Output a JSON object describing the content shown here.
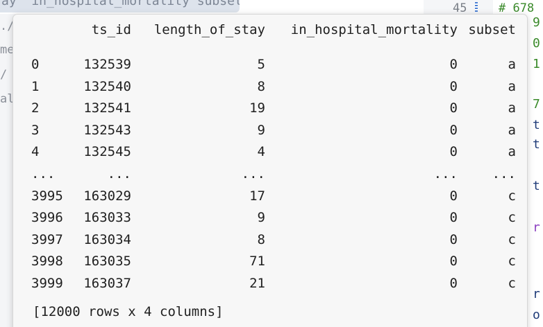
{
  "background": {
    "top_tab_text": "ay  in_hospital_mortality subset",
    "left_fragments": [
      "./",
      "me.",
      "/",
      "al"
    ],
    "right_pane": {
      "line_number": "45",
      "comment": "# 678",
      "fragments": [
        {
          "text": "9",
          "color": "#3a8a2a"
        },
        {
          "text": "0",
          "color": "#3a8a2a"
        },
        {
          "text": "1",
          "color": "#3a8a2a"
        },
        {
          "text": "7",
          "color": "#3a8a2a"
        },
        {
          "text": "t",
          "color": "#1f3b78"
        },
        {
          "text": "t",
          "color": "#1f3b78"
        },
        {
          "text": "t",
          "color": "#1f3b78"
        },
        {
          "text": "r",
          "color": "#8b3fc0"
        },
        {
          "text": "r",
          "color": "#1f3b78"
        },
        {
          "text": "o",
          "color": "#1f3b78"
        }
      ]
    }
  },
  "output": {
    "columns": [
      "",
      "ts_id",
      "length_of_stay",
      "in_hospital_mortality",
      "subset"
    ],
    "rows": [
      [
        "0",
        "132539",
        "5",
        "0",
        "a"
      ],
      [
        "1",
        "132540",
        "8",
        "0",
        "a"
      ],
      [
        "2",
        "132541",
        "19",
        "0",
        "a"
      ],
      [
        "3",
        "132543",
        "9",
        "0",
        "a"
      ],
      [
        "4",
        "132545",
        "4",
        "0",
        "a"
      ],
      [
        "...",
        "...",
        "...",
        "...",
        "..."
      ],
      [
        "3995",
        "163029",
        "17",
        "0",
        "c"
      ],
      [
        "3996",
        "163033",
        "9",
        "0",
        "c"
      ],
      [
        "3997",
        "163034",
        "8",
        "0",
        "c"
      ],
      [
        "3998",
        "163035",
        "71",
        "0",
        "c"
      ],
      [
        "3999",
        "163037",
        "21",
        "0",
        "c"
      ]
    ],
    "summary": "[12000 rows x 4 columns]"
  }
}
